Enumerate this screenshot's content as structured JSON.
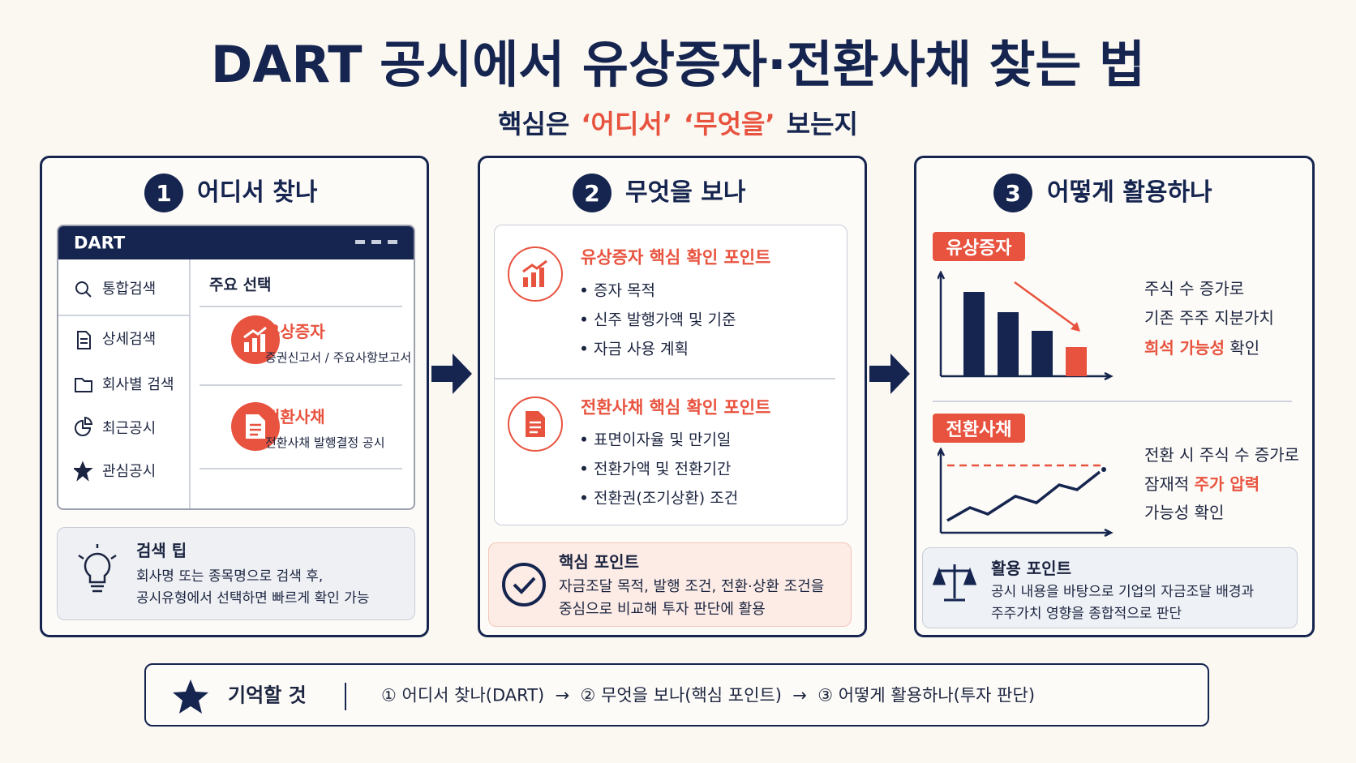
{
  "title": "DART 공시에서 유상증자·전환사채 찾는 법",
  "subtitle": [
    "핵심은",
    {
      "em": "‘어디서’"
    },
    {
      "em": "‘무엇을’"
    },
    "보는지"
  ],
  "panels": [
    {
      "number": "1",
      "heading": "어디서 찾나",
      "app": {
        "brand": "DART",
        "sidebar": [
          "통합검색",
          "상세검색",
          "회사별 검색",
          "최근공시",
          "관심공시"
        ],
        "main_title": "주요 선택",
        "items": [
          {
            "name": "유상증자",
            "desc": "증권신고서 / 주요사항보고서"
          },
          {
            "name": "전환사채",
            "desc": "전환사채 발행결정 공시"
          }
        ]
      },
      "tip": {
        "title": "검색 팁",
        "lines": [
          "회사명 또는 종목명으로 검색 후,",
          "공시유형에서 선택하면 빠르게 확인 가능"
        ]
      }
    },
    {
      "number": "2",
      "heading": "무엇을 보나",
      "sections": [
        {
          "title": "유상증자 핵심 확인 포인트",
          "items": [
            "증자 목적",
            "신주 발행가액 및 기준",
            "자금 사용 계획"
          ]
        },
        {
          "title": "전환사채 핵심 확인 포인트",
          "items": [
            "표면이자율 및 만기일",
            "전환가액 및 전환기간",
            "전환권(조기상환) 조건"
          ]
        }
      ],
      "key": {
        "title": "핵심 포인트",
        "lines": [
          "자금조달 목적, 발행 조건, 전환·상환 조건을",
          "중심으로 비교해 투자 판단에 활용"
        ]
      }
    },
    {
      "number": "3",
      "heading": "어떻게 활용하나",
      "cases": [
        {
          "tag": "유상증자",
          "lines": [
            [
              "주식 수 증가로"
            ],
            [
              "기존 주주 지분가치"
            ],
            [
              {
                "em": "희석 가능성"
              },
              " 확인"
            ]
          ]
        },
        {
          "tag": "전환사채",
          "lines": [
            [
              "전환 시 주식 수 증가로"
            ],
            [
              "잠재적 ",
              {
                "em": "주가 압력"
              }
            ],
            [
              "가능성 확인"
            ]
          ]
        }
      ],
      "usage": {
        "title": "활용 포인트",
        "lines": [
          "공시 내용을 바탕으로 기업의 자금조달 배경과",
          "주주가치 영향을 종합적으로 판단"
        ]
      }
    }
  ],
  "footer": {
    "title": "기억할 것",
    "flow": "① 어디서 찾나(DART)  →  ② 무엇을 보나(핵심 포인트)  →  ③ 어떻게 활용하나(투자 판단)"
  }
}
